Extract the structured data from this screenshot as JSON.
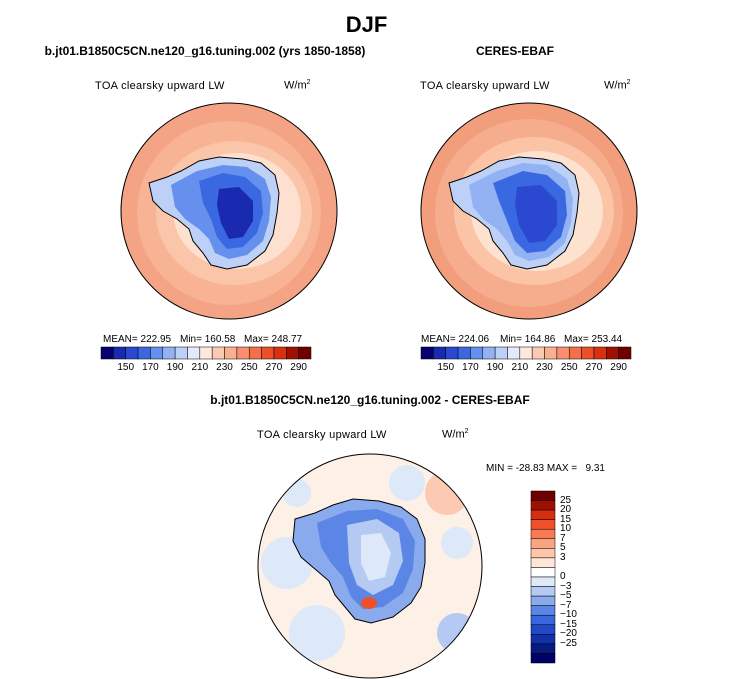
{
  "title": "DJF",
  "panels": {
    "model": {
      "title": "b.jt01.B1850C5CN.ne120_g16.tuning.002 (yrs 1850-1858)",
      "variable": "TOA clearsky upward LW",
      "units_base": "W/m",
      "units_exp": "2",
      "mean_label": "MEAN= 222.95",
      "min_label": "Min= 160.58",
      "max_label": "Max= 248.77"
    },
    "obs": {
      "title": "CERES-EBAF",
      "variable": "TOA clearsky upward LW",
      "units_base": "W/m",
      "units_exp": "2",
      "mean_label": "MEAN= 224.06",
      "min_label": "Min= 164.86",
      "max_label": "Max= 253.44"
    },
    "diff": {
      "title": "b.jt01.B1850C5CN.ne120_g16.tuning.002 - CERES-EBAF",
      "variable": "TOA clearsky upward LW",
      "units_base": "W/m",
      "units_exp": "2",
      "minmax_label": "MIN = -28.83 MAX =   9.31"
    }
  },
  "colorbar_top": {
    "colors": [
      "#08006e",
      "#1a2ab0",
      "#2a48d0",
      "#3a68e0",
      "#6690ee",
      "#92b2f4",
      "#bcd0f8",
      "#e2ecf8",
      "#fde8dc",
      "#fccab2",
      "#fab090",
      "#f89070",
      "#f47048",
      "#ec5028",
      "#d83010",
      "#a01000",
      "#700000"
    ],
    "tick_labels": [
      "150",
      "170",
      "190",
      "210",
      "230",
      "250",
      "270",
      "290"
    ]
  },
  "colorbar_diff": {
    "colors": [
      "#700000",
      "#a01000",
      "#d82e10",
      "#f05028",
      "#f77a52",
      "#fba482",
      "#fdc6a8",
      "#ffe6d6",
      "#ffffff",
      "#dde8f8",
      "#b4caf2",
      "#8aaaee",
      "#5c86e6",
      "#3866dc",
      "#2048c8",
      "#1230a8",
      "#061a80",
      "#000066"
    ],
    "tick_labels": [
      "25",
      "20",
      "15",
      "10",
      "7",
      "5",
      "3",
      "0",
      "−3",
      "−5",
      "−7",
      "−10",
      "−15",
      "−20",
      "−25"
    ]
  },
  "colors": {
    "land_outline": "#000000",
    "ocean_warm": "#fab090",
    "antarctica_cold": "#2a48d0"
  }
}
